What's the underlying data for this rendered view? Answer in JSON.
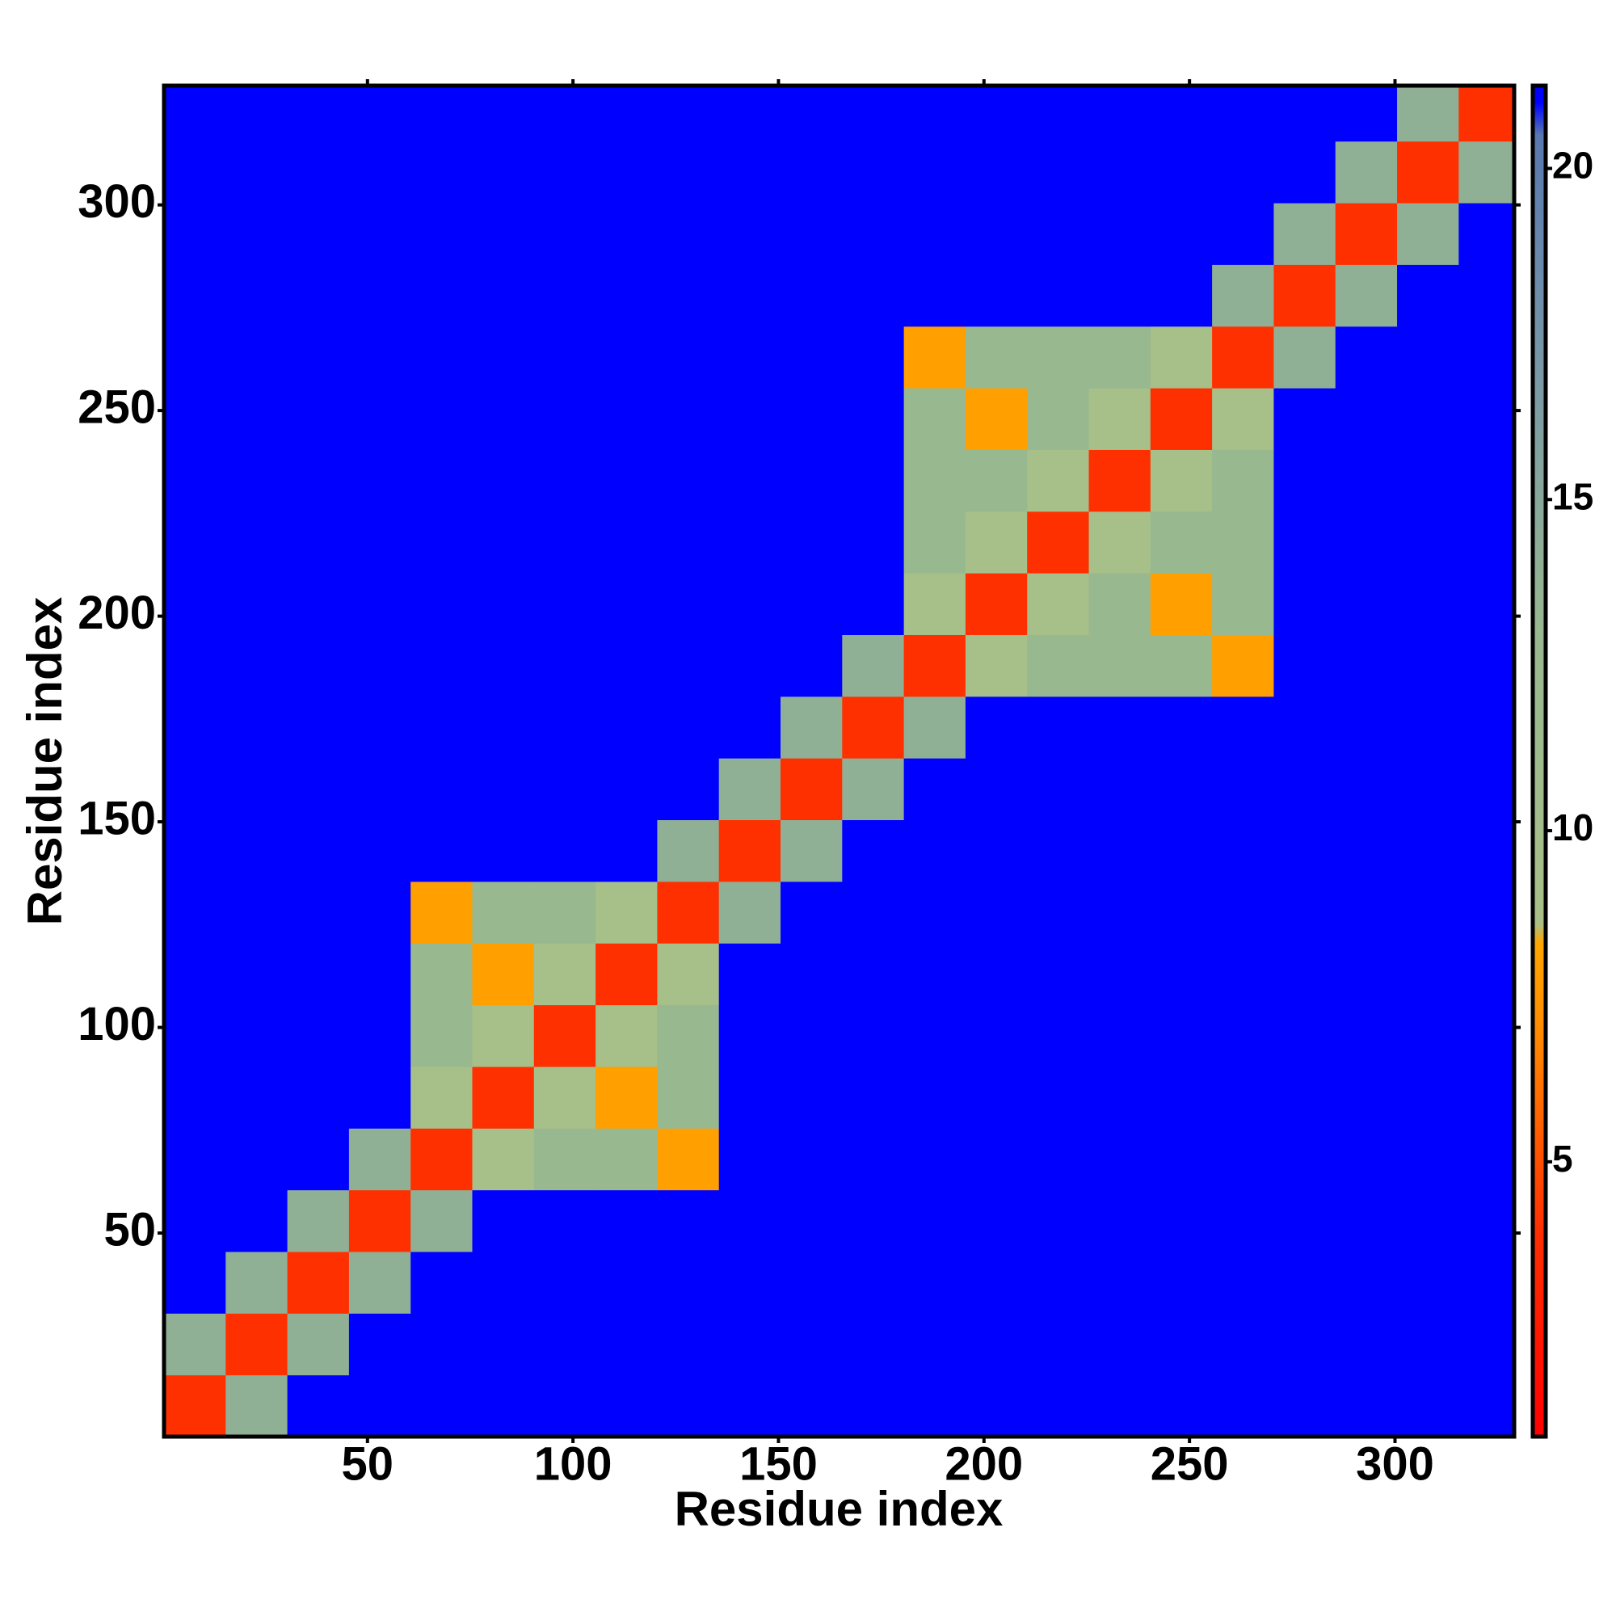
{
  "chart_data": {
    "type": "heatmap",
    "xlabel": "Residue index",
    "ylabel": "Residue index",
    "x": [
      8,
      23,
      38,
      53,
      68,
      83,
      98,
      113,
      128,
      143,
      158,
      173,
      188,
      203,
      218,
      233,
      248,
      263,
      278,
      293,
      308,
      323
    ],
    "y": [
      8,
      23,
      38,
      53,
      68,
      83,
      98,
      113,
      128,
      143,
      158,
      173,
      188,
      203,
      218,
      233,
      248,
      263,
      278,
      293,
      308,
      323
    ],
    "xlim": [
      0.5,
      329
    ],
    "ylim": [
      0.5,
      329
    ],
    "xticks": [
      50,
      100,
      150,
      200,
      250,
      300
    ],
    "yticks": [
      50,
      100,
      150,
      200,
      250,
      300
    ],
    "clim": [
      0.85,
      21.25
    ],
    "cticks": [
      5,
      10,
      15,
      20
    ],
    "colorscale": [
      [
        0.85,
        "#ff0000"
      ],
      [
        4,
        "#ff3000"
      ],
      [
        7,
        "#ff8c00"
      ],
      [
        8.3,
        "#ffa500"
      ],
      [
        8.6,
        "#a8c088"
      ],
      [
        13,
        "#98b890"
      ],
      [
        17,
        "#7898a8"
      ],
      [
        20.5,
        "#5878b0"
      ],
      [
        21,
        "#0000ff"
      ],
      [
        21.25,
        "#0000ff"
      ]
    ],
    "z": [
      [
        4,
        14,
        21,
        21,
        21,
        21,
        21,
        21,
        21,
        21,
        21,
        21,
        21,
        21,
        21,
        21,
        21,
        21,
        21,
        21,
        21,
        21
      ],
      [
        14,
        4,
        14,
        21,
        21,
        21,
        21,
        21,
        21,
        21,
        21,
        21,
        21,
        21,
        21,
        21,
        21,
        21,
        21,
        21,
        21,
        21
      ],
      [
        21,
        14,
        4,
        14,
        21,
        21,
        21,
        21,
        21,
        21,
        21,
        21,
        21,
        21,
        21,
        21,
        21,
        21,
        21,
        21,
        21,
        21
      ],
      [
        21,
        21,
        14,
        4,
        14,
        21,
        21,
        21,
        21,
        21,
        21,
        21,
        21,
        21,
        21,
        21,
        21,
        21,
        21,
        21,
        21,
        21
      ],
      [
        21,
        21,
        21,
        14,
        4,
        9,
        13,
        13,
        8,
        21,
        21,
        21,
        21,
        21,
        21,
        21,
        21,
        21,
        21,
        21,
        21,
        21
      ],
      [
        21,
        21,
        21,
        21,
        9,
        4,
        9,
        8,
        13,
        21,
        21,
        21,
        21,
        21,
        21,
        21,
        21,
        21,
        21,
        21,
        21,
        21
      ],
      [
        21,
        21,
        21,
        21,
        13,
        9,
        4,
        9,
        13,
        21,
        21,
        21,
        21,
        21,
        21,
        21,
        21,
        21,
        21,
        21,
        21,
        21
      ],
      [
        21,
        21,
        21,
        21,
        13,
        8,
        9,
        4,
        9,
        21,
        21,
        21,
        21,
        21,
        21,
        21,
        21,
        21,
        21,
        21,
        21,
        21
      ],
      [
        21,
        21,
        21,
        21,
        8,
        13,
        13,
        9,
        4,
        14,
        21,
        21,
        21,
        21,
        21,
        21,
        21,
        21,
        21,
        21,
        21,
        21
      ],
      [
        21,
        21,
        21,
        21,
        21,
        21,
        21,
        21,
        14,
        4,
        14,
        21,
        21,
        21,
        21,
        21,
        21,
        21,
        21,
        21,
        21,
        21
      ],
      [
        21,
        21,
        21,
        21,
        21,
        21,
        21,
        21,
        21,
        14,
        4,
        14,
        21,
        21,
        21,
        21,
        21,
        21,
        21,
        21,
        21,
        21
      ],
      [
        21,
        21,
        21,
        21,
        21,
        21,
        21,
        21,
        21,
        21,
        14,
        4,
        14,
        21,
        21,
        21,
        21,
        21,
        21,
        21,
        21,
        21
      ],
      [
        21,
        21,
        21,
        21,
        21,
        21,
        21,
        21,
        21,
        21,
        21,
        14,
        4,
        9,
        13,
        13,
        13,
        8,
        21,
        21,
        21,
        21
      ],
      [
        21,
        21,
        21,
        21,
        21,
        21,
        21,
        21,
        21,
        21,
        21,
        21,
        9,
        4,
        9,
        13,
        8,
        13,
        21,
        21,
        21,
        21
      ],
      [
        21,
        21,
        21,
        21,
        21,
        21,
        21,
        21,
        21,
        21,
        21,
        21,
        13,
        9,
        4,
        9,
        13,
        13,
        21,
        21,
        21,
        21
      ],
      [
        21,
        21,
        21,
        21,
        21,
        21,
        21,
        21,
        21,
        21,
        21,
        21,
        13,
        13,
        9,
        4,
        9,
        13,
        21,
        21,
        21,
        21
      ],
      [
        21,
        21,
        21,
        21,
        21,
        21,
        21,
        21,
        21,
        21,
        21,
        21,
        13,
        8,
        13,
        9,
        4,
        9,
        21,
        21,
        21,
        21
      ],
      [
        21,
        21,
        21,
        21,
        21,
        21,
        21,
        21,
        21,
        21,
        21,
        21,
        8,
        13,
        13,
        13,
        9,
        4,
        14,
        21,
        21,
        21
      ],
      [
        21,
        21,
        21,
        21,
        21,
        21,
        21,
        21,
        21,
        21,
        21,
        21,
        21,
        21,
        21,
        21,
        21,
        14,
        4,
        14,
        21,
        21
      ],
      [
        21,
        21,
        21,
        21,
        21,
        21,
        21,
        21,
        21,
        21,
        21,
        21,
        21,
        21,
        21,
        21,
        21,
        21,
        14,
        4,
        14,
        21
      ],
      [
        21,
        21,
        21,
        21,
        21,
        21,
        21,
        21,
        21,
        21,
        21,
        21,
        21,
        21,
        21,
        21,
        21,
        21,
        21,
        14,
        4,
        14
      ],
      [
        21,
        21,
        21,
        21,
        21,
        21,
        21,
        21,
        21,
        21,
        21,
        21,
        21,
        21,
        21,
        21,
        21,
        21,
        21,
        21,
        14,
        4
      ]
    ]
  }
}
